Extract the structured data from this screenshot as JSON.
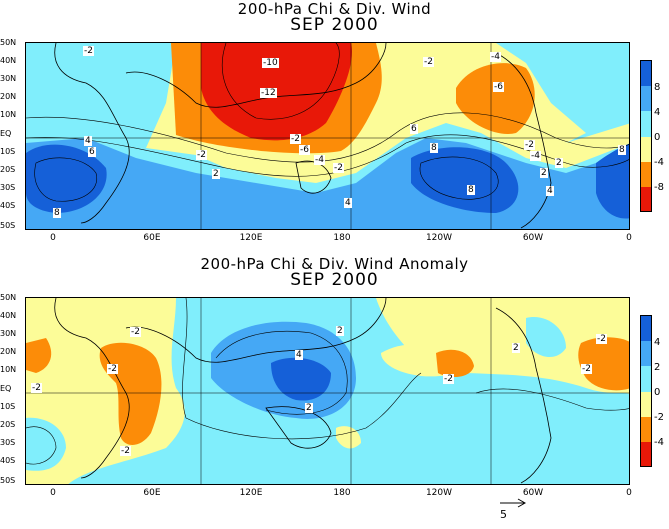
{
  "top_panel": {
    "title": "200-hPa Chi & Div. Wind",
    "date": "SEP 2000",
    "lat_labels": [
      "50N",
      "40N",
      "30N",
      "20N",
      "10N",
      "EQ",
      "10S",
      "20S",
      "30S",
      "40S",
      "50S"
    ],
    "lon_labels": [
      "0",
      "60E",
      "120E",
      "180",
      "120W",
      "60W",
      "0"
    ],
    "colorbar_labels": [
      "8",
      "4",
      "0",
      "-4",
      "-8"
    ],
    "colors": [
      "#1560d8",
      "#45a8f5",
      "#80eefc",
      "#fcfc98",
      "#fc8c08",
      "#e81808"
    ],
    "contour_labels": [
      "-2",
      "-10",
      "-12",
      "-6",
      "-4",
      "-2",
      "-2",
      "-6",
      "-2",
      "-4",
      "-2",
      "-2",
      "4",
      "6",
      "2",
      "4",
      "2",
      "8",
      "8",
      "8",
      "4",
      "2",
      "6",
      "8",
      "-4"
    ]
  },
  "bottom_panel": {
    "title": "200-hPa Chi & Div. Wind Anomaly",
    "date": "SEP 2000",
    "lat_labels": [
      "50N",
      "40N",
      "30N",
      "20N",
      "10N",
      "EQ",
      "10S",
      "20S",
      "30S",
      "40S",
      "50S"
    ],
    "lon_labels": [
      "0",
      "60E",
      "120E",
      "180",
      "120W",
      "60W",
      "0"
    ],
    "colorbar_labels": [
      "4",
      "2",
      "0",
      "-2",
      "-4"
    ],
    "colors": [
      "#1560d8",
      "#45a8f5",
      "#80eefc",
      "#fcfc98",
      "#fc8c08",
      "#e81808"
    ],
    "contour_labels": [
      "-2",
      "-2",
      "-2",
      "4",
      "2",
      "2",
      "-2",
      "-2",
      "-2",
      "2",
      "-2"
    ]
  },
  "reference_vector": "5"
}
